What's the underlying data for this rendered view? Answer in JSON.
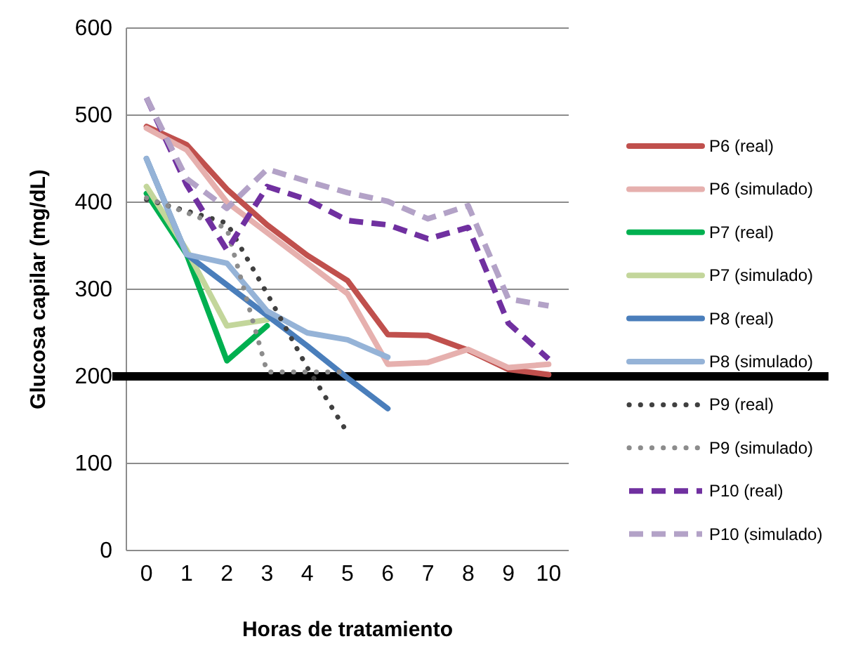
{
  "chart_data": {
    "type": "line",
    "xlabel": "Horas de tratamiento",
    "ylabel": "Glucosa capilar (mg/dL)",
    "categories": [
      "0",
      "1",
      "2",
      "3",
      "4",
      "5",
      "6",
      "7",
      "8",
      "9",
      "10"
    ],
    "ylim": [
      0,
      600
    ],
    "yticks": [
      0,
      100,
      200,
      300,
      400,
      500,
      600
    ],
    "grid": "y",
    "legend": "right",
    "marker": "none",
    "ref_lines": [
      {
        "axis": "y",
        "value": 200,
        "color": "#000000"
      }
    ],
    "series": [
      {
        "name": "P6 (real)",
        "color": "#c0504d",
        "line_style": "solid",
        "values": [
          487,
          466,
          415,
          374,
          339,
          310,
          248,
          247,
          230,
          208,
          202
        ]
      },
      {
        "name": "P6 (simulado)",
        "color": "#e6b0ae",
        "line_style": "solid",
        "values": [
          485,
          460,
          400,
          365,
          330,
          295,
          214,
          216,
          231,
          210,
          214
        ]
      },
      {
        "name": "P7 (real)",
        "color": "#00b050",
        "line_style": "solid",
        "values": [
          410,
          340,
          218,
          258,
          null,
          null,
          null,
          null,
          null,
          null,
          null
        ]
      },
      {
        "name": "P7 (simulado)",
        "color": "#c3d69b",
        "line_style": "solid",
        "values": [
          418,
          345,
          258,
          265,
          null,
          null,
          null,
          null,
          null,
          null,
          null
        ]
      },
      {
        "name": "P8 (real)",
        "color": "#4a7ebb",
        "line_style": "solid",
        "values": [
          450,
          340,
          305,
          270,
          235,
          198,
          163,
          null,
          null,
          null,
          null
        ]
      },
      {
        "name": "P8 (simulado)",
        "color": "#95b3d7",
        "line_style": "solid",
        "values": [
          450,
          340,
          330,
          275,
          250,
          242,
          222,
          null,
          null,
          null,
          null
        ]
      },
      {
        "name": "P9 (real)",
        "color": "#404040",
        "line_style": "dotted",
        "values": [
          403,
          390,
          376,
          295,
          210,
          135,
          null,
          null,
          null,
          null,
          null
        ]
      },
      {
        "name": "P9 (simulado)",
        "color": "#8c8c8c",
        "line_style": "dotted",
        "values": [
          405,
          388,
          370,
          205,
          205,
          205,
          null,
          null,
          null,
          null,
          null
        ]
      },
      {
        "name": "P10 (real)",
        "color": "#7030a0",
        "line_style": "dashed",
        "values": [
          520,
          420,
          345,
          418,
          403,
          379,
          374,
          358,
          371,
          261,
          220
        ]
      },
      {
        "name": "P10 (simulado)",
        "color": "#b3a2c7",
        "line_style": "dashed",
        "values": [
          520,
          427,
          393,
          438,
          424,
          411,
          401,
          381,
          396,
          289,
          281
        ]
      }
    ]
  }
}
